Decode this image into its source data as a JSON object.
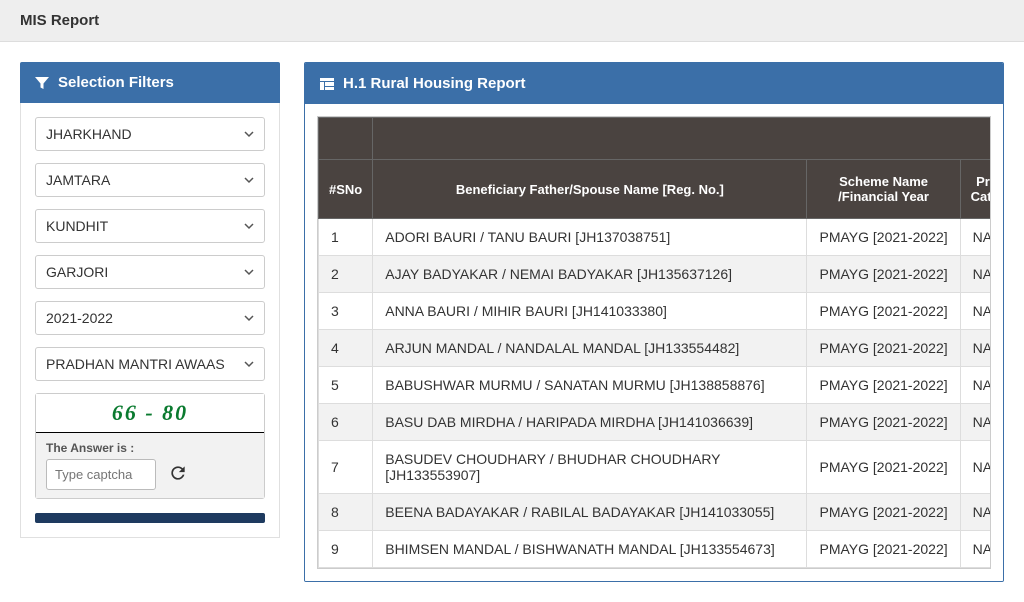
{
  "page": {
    "title": "MIS Report"
  },
  "filters": {
    "header": "Selection Filters",
    "state": "JHARKHAND",
    "district": "JAMTARA",
    "block": "KUNDHIT",
    "panchayat": "GARJORI",
    "year": "2021-2022",
    "scheme": "PRADHAN MANTRI AWAAS"
  },
  "captcha": {
    "text": "66 - 80",
    "label": "The Answer is :",
    "placeholder": "Type captcha"
  },
  "report": {
    "header": "H.1 Rural Housing Report",
    "columns": {
      "sno": "#SNo",
      "beneficiary": "Beneficiary Father/Spouse Name [Reg. No.]",
      "scheme": "Scheme Name /Financial Year",
      "priority": "Priority Category"
    },
    "rows": [
      {
        "sno": "1",
        "beneficiary": "ADORI BAURI / TANU BAURI [JH137038751]",
        "scheme": "PMAYG [2021-2022]",
        "priority": "NA"
      },
      {
        "sno": "2",
        "beneficiary": "AJAY BADYAKAR / NEMAI BADYAKAR [JH135637126]",
        "scheme": "PMAYG [2021-2022]",
        "priority": "NA"
      },
      {
        "sno": "3",
        "beneficiary": "ANNA BAURI / MIHIR BAURI [JH141033380]",
        "scheme": "PMAYG [2021-2022]",
        "priority": "NA"
      },
      {
        "sno": "4",
        "beneficiary": "ARJUN MANDAL / NANDALAL MANDAL [JH133554482]",
        "scheme": "PMAYG [2021-2022]",
        "priority": "NA"
      },
      {
        "sno": "5",
        "beneficiary": "BABUSHWAR MURMU / SANATAN MURMU [JH138858876]",
        "scheme": "PMAYG [2021-2022]",
        "priority": "NA"
      },
      {
        "sno": "6",
        "beneficiary": "BASU DAB MIRDHA / HARIPADA MIRDHA [JH141036639]",
        "scheme": "PMAYG [2021-2022]",
        "priority": "NA"
      },
      {
        "sno": "7",
        "beneficiary": "BASUDEV CHOUDHARY / BHUDHAR CHOUDHARY [JH133553907]",
        "scheme": "PMAYG [2021-2022]",
        "priority": "NA"
      },
      {
        "sno": "8",
        "beneficiary": "BEENA BADAYAKAR / RABILAL BADAYAKAR [JH141033055]",
        "scheme": "PMAYG [2021-2022]",
        "priority": "NA"
      },
      {
        "sno": "9",
        "beneficiary": "BHIMSEN MANDAL / BISHWANATH MANDAL [JH133554673]",
        "scheme": "PMAYG [2021-2022]",
        "priority": "NA"
      }
    ]
  }
}
